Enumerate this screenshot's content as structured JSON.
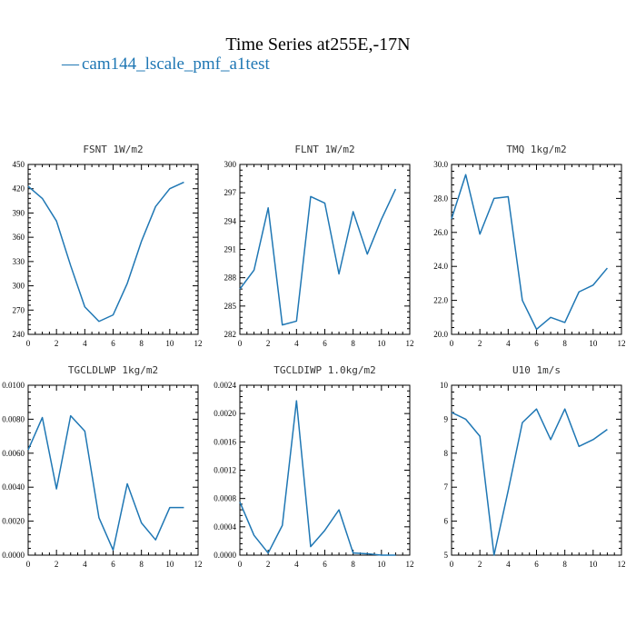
{
  "figure": {
    "title": "Time Series at255E,-17N",
    "legend": {
      "symbol": "—",
      "label": "cam144_lscale_pmf_a1test",
      "color": "#1f77b4"
    },
    "line_color": "#1f77b4"
  },
  "chart_data": [
    {
      "type": "line",
      "title": "FSNT   1W/m2",
      "x": [
        0,
        1,
        2,
        3,
        4,
        5,
        6,
        7,
        8,
        9,
        10,
        11
      ],
      "series": [
        {
          "values": [
            423,
            408,
            380,
            325,
            274,
            256,
            264,
            303,
            355,
            398,
            420,
            428
          ]
        }
      ],
      "xlim": [
        0,
        12
      ],
      "ylim": [
        240,
        450
      ],
      "xticks": [
        0,
        2,
        4,
        6,
        8,
        10,
        12
      ],
      "yticks": [
        240,
        270,
        300,
        330,
        360,
        390,
        420,
        450
      ],
      "ytick_labels": [
        "240",
        "270",
        "300",
        "330",
        "360",
        "390",
        "420",
        "450"
      ]
    },
    {
      "type": "line",
      "title": "FLNT   1W/m2",
      "x": [
        0,
        1,
        2,
        3,
        4,
        5,
        6,
        7,
        8,
        9,
        10,
        11
      ],
      "series": [
        {
          "values": [
            286.8,
            288.8,
            295.4,
            283.0,
            283.4,
            296.6,
            295.9,
            288.4,
            295.0,
            290.5,
            294.2,
            297.4
          ]
        }
      ],
      "xlim": [
        0,
        12
      ],
      "ylim": [
        282,
        300
      ],
      "xticks": [
        0,
        2,
        4,
        6,
        8,
        10,
        12
      ],
      "yticks": [
        282,
        285,
        288,
        291,
        294,
        297,
        300
      ],
      "ytick_labels": [
        "282",
        "285",
        "288",
        "291",
        "294",
        "297",
        "300"
      ]
    },
    {
      "type": "line",
      "title": "TMQ   1kg/m2",
      "x": [
        0,
        1,
        2,
        3,
        4,
        5,
        6,
        7,
        8,
        9,
        10,
        11
      ],
      "series": [
        {
          "values": [
            26.8,
            29.4,
            25.9,
            28.0,
            28.1,
            22.0,
            20.3,
            21.0,
            20.7,
            22.5,
            22.9,
            23.9
          ]
        }
      ],
      "xlim": [
        0,
        12
      ],
      "ylim": [
        20,
        30
      ],
      "xticks": [
        0,
        2,
        4,
        6,
        8,
        10,
        12
      ],
      "yticks": [
        20,
        22,
        24,
        26,
        28,
        30
      ],
      "ytick_labels": [
        "20.0",
        "22.0",
        "24.0",
        "26.0",
        "28.0",
        "30.0"
      ]
    },
    {
      "type": "line",
      "title": "TGCLDLWP   1kg/m2",
      "x": [
        0,
        1,
        2,
        3,
        4,
        5,
        6,
        7,
        8,
        9,
        10,
        11
      ],
      "series": [
        {
          "values": [
            0.0062,
            0.0081,
            0.0039,
            0.0082,
            0.0073,
            0.0022,
            0.0003,
            0.0042,
            0.0019,
            0.0009,
            0.0028,
            0.0028
          ]
        }
      ],
      "xlim": [
        0,
        12
      ],
      "ylim": [
        0,
        0.01
      ],
      "xticks": [
        0,
        2,
        4,
        6,
        8,
        10,
        12
      ],
      "yticks": [
        0,
        0.002,
        0.004,
        0.006,
        0.008,
        0.01
      ],
      "ytick_labels": [
        "0.0000",
        "0.0020",
        "0.0040",
        "0.0060",
        "0.0080",
        "0.0100"
      ]
    },
    {
      "type": "line",
      "title": "TGCLDIWP   1.0kg/m2",
      "x": [
        0,
        1,
        2,
        3,
        4,
        5,
        6,
        7,
        8,
        9,
        10,
        11
      ],
      "series": [
        {
          "values": [
            0.00075,
            0.00028,
            3e-05,
            0.00042,
            0.00218,
            0.00012,
            0.00035,
            0.00064,
            3e-05,
            2e-05,
            0.0,
            0.0
          ]
        }
      ],
      "xlim": [
        0,
        12
      ],
      "ylim": [
        0,
        0.0024
      ],
      "xticks": [
        0,
        2,
        4,
        6,
        8,
        10,
        12
      ],
      "yticks": [
        0,
        0.0004,
        0.0008,
        0.0012,
        0.0016,
        0.002,
        0.0024
      ],
      "ytick_labels": [
        "0.0000",
        "0.0004",
        "0.0008",
        "0.0012",
        "0.0016",
        "0.0020",
        "0.0024"
      ]
    },
    {
      "type": "line",
      "title": "U10   1m/s",
      "x": [
        0,
        1,
        2,
        3,
        4,
        5,
        6,
        7,
        8,
        9,
        10,
        11
      ],
      "series": [
        {
          "values": [
            9.2,
            9.0,
            8.5,
            5.0,
            6.9,
            8.9,
            9.3,
            8.4,
            9.3,
            8.2,
            8.4,
            8.7
          ]
        }
      ],
      "xlim": [
        0,
        12
      ],
      "ylim": [
        5,
        10
      ],
      "xticks": [
        0,
        2,
        4,
        6,
        8,
        10,
        12
      ],
      "yticks": [
        5,
        6,
        7,
        8,
        9,
        10
      ],
      "ytick_labels": [
        "5",
        "6",
        "7",
        "8",
        "9",
        "10"
      ]
    }
  ]
}
